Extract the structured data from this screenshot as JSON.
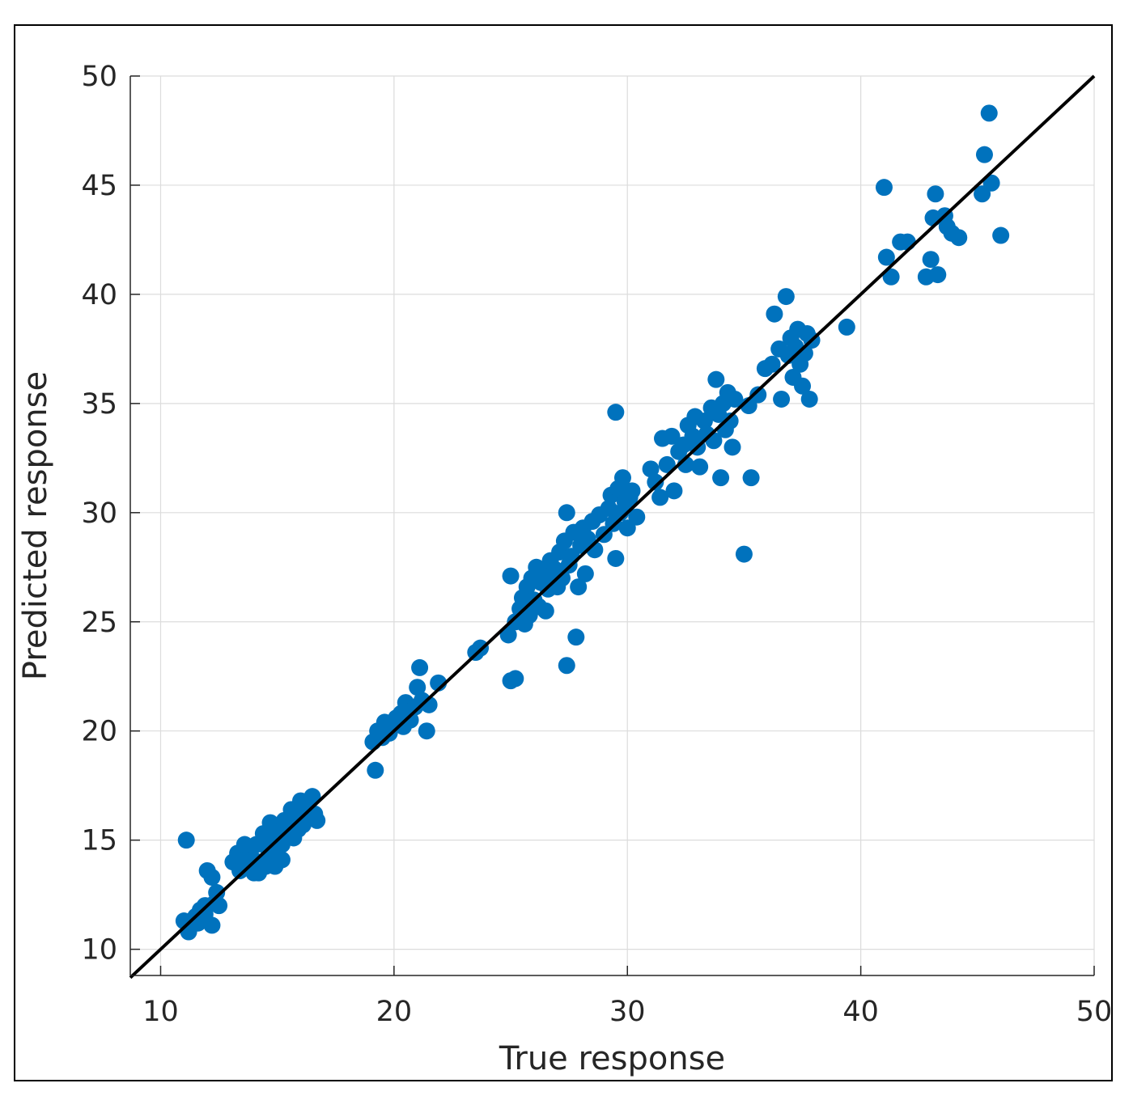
{
  "chart_data": {
    "type": "scatter",
    "title": "",
    "xlabel": "True response",
    "ylabel": "Predicted response",
    "xlim": [
      8.7,
      50
    ],
    "ylim": [
      8.8,
      50
    ],
    "xticks": [
      10,
      20,
      30,
      40,
      50
    ],
    "yticks": [
      10,
      15,
      20,
      25,
      30,
      35,
      40,
      45,
      50
    ],
    "grid": true,
    "colors": {
      "points": "#0072BD",
      "reference_line": "#000000",
      "grid": "#dcdcdc",
      "axes": "#262626"
    },
    "reference_line": {
      "from": [
        8.7,
        8.7
      ],
      "to": [
        50,
        50
      ]
    },
    "points": [
      [
        11.0,
        11.3
      ],
      [
        11.2,
        10.8
      ],
      [
        11.1,
        15.0
      ],
      [
        11.5,
        11.5
      ],
      [
        11.7,
        11.8
      ],
      [
        11.9,
        12.0
      ],
      [
        12.0,
        13.6
      ],
      [
        12.2,
        13.3
      ],
      [
        12.4,
        12.6
      ],
      [
        12.5,
        12.0
      ],
      [
        12.2,
        11.1
      ],
      [
        11.6,
        11.2
      ],
      [
        11.9,
        11.6
      ],
      [
        12.3,
        12.1
      ],
      [
        13.1,
        14.0
      ],
      [
        13.3,
        14.4
      ],
      [
        13.4,
        13.6
      ],
      [
        13.6,
        13.9
      ],
      [
        13.7,
        14.7
      ],
      [
        13.9,
        14.2
      ],
      [
        14.0,
        13.5
      ],
      [
        14.1,
        14.8
      ],
      [
        14.3,
        14.0
      ],
      [
        14.4,
        15.3
      ],
      [
        14.5,
        13.8
      ],
      [
        14.6,
        14.6
      ],
      [
        14.7,
        15.8
      ],
      [
        14.8,
        14.3
      ],
      [
        14.9,
        15.0
      ],
      [
        15.0,
        14.6
      ],
      [
        15.1,
        15.4
      ],
      [
        15.2,
        14.8
      ],
      [
        15.3,
        15.9
      ],
      [
        15.4,
        15.2
      ],
      [
        15.5,
        15.6
      ],
      [
        15.6,
        16.4
      ],
      [
        15.7,
        15.1
      ],
      [
        15.8,
        16.0
      ],
      [
        15.9,
        15.5
      ],
      [
        16.0,
        16.8
      ],
      [
        16.2,
        16.1
      ],
      [
        16.3,
        16.5
      ],
      [
        16.5,
        17.0
      ],
      [
        16.6,
        16.2
      ],
      [
        16.7,
        15.9
      ],
      [
        14.2,
        13.5
      ],
      [
        14.9,
        13.8
      ],
      [
        15.2,
        14.1
      ],
      [
        13.6,
        14.8
      ],
      [
        16.1,
        15.7
      ],
      [
        19.1,
        19.5
      ],
      [
        19.2,
        18.2
      ],
      [
        19.3,
        20.0
      ],
      [
        19.5,
        19.7
      ],
      [
        19.6,
        20.4
      ],
      [
        19.8,
        19.9
      ],
      [
        20.0,
        20.3
      ],
      [
        20.3,
        20.8
      ],
      [
        20.4,
        20.2
      ],
      [
        20.5,
        21.3
      ],
      [
        20.7,
        20.5
      ],
      [
        20.9,
        21.1
      ],
      [
        21.0,
        22.0
      ],
      [
        21.1,
        22.9
      ],
      [
        21.2,
        21.4
      ],
      [
        21.4,
        20.0
      ],
      [
        21.5,
        21.2
      ],
      [
        21.9,
        22.2
      ],
      [
        20.1,
        20.6
      ],
      [
        23.5,
        23.6
      ],
      [
        23.7,
        23.8
      ],
      [
        24.9,
        24.4
      ],
      [
        25.0,
        22.3
      ],
      [
        25.2,
        22.4
      ],
      [
        25.0,
        27.1
      ],
      [
        25.2,
        25.0
      ],
      [
        25.4,
        25.6
      ],
      [
        25.5,
        26.1
      ],
      [
        25.6,
        24.9
      ],
      [
        25.7,
        26.6
      ],
      [
        25.8,
        25.3
      ],
      [
        25.9,
        27.0
      ],
      [
        26.0,
        26.0
      ],
      [
        26.1,
        27.5
      ],
      [
        26.2,
        25.7
      ],
      [
        26.3,
        26.8
      ],
      [
        26.4,
        27.2
      ],
      [
        26.5,
        25.5
      ],
      [
        26.6,
        26.5
      ],
      [
        26.7,
        27.8
      ],
      [
        26.8,
        26.9
      ],
      [
        26.9,
        27.4
      ],
      [
        27.0,
        26.6
      ],
      [
        27.1,
        28.2
      ],
      [
        27.2,
        27.0
      ],
      [
        27.3,
        28.7
      ],
      [
        27.4,
        30.0
      ],
      [
        27.4,
        23.0
      ],
      [
        27.5,
        27.6
      ],
      [
        27.6,
        28.0
      ],
      [
        27.7,
        29.1
      ],
      [
        27.8,
        24.3
      ],
      [
        27.9,
        26.6
      ],
      [
        28.0,
        28.5
      ],
      [
        28.1,
        29.3
      ],
      [
        28.2,
        27.2
      ],
      [
        28.3,
        28.8
      ],
      [
        28.5,
        29.6
      ],
      [
        28.6,
        28.3
      ],
      [
        28.8,
        29.9
      ],
      [
        29.0,
        29.0
      ],
      [
        29.2,
        30.2
      ],
      [
        29.3,
        30.8
      ],
      [
        29.4,
        29.5
      ],
      [
        29.5,
        34.6
      ],
      [
        29.5,
        27.9
      ],
      [
        29.6,
        31.1
      ],
      [
        29.7,
        30.0
      ],
      [
        29.8,
        31.6
      ],
      [
        29.9,
        30.5
      ],
      [
        30.0,
        29.3
      ],
      [
        30.1,
        30.7
      ],
      [
        30.2,
        31.0
      ],
      [
        30.4,
        29.8
      ],
      [
        31.0,
        32.0
      ],
      [
        31.2,
        31.4
      ],
      [
        31.4,
        30.7
      ],
      [
        31.5,
        33.4
      ],
      [
        31.7,
        32.2
      ],
      [
        31.9,
        33.5
      ],
      [
        32.0,
        31.0
      ],
      [
        32.2,
        32.8
      ],
      [
        32.4,
        33.1
      ],
      [
        32.5,
        32.2
      ],
      [
        32.6,
        34.0
      ],
      [
        32.8,
        33.5
      ],
      [
        32.9,
        34.4
      ],
      [
        33.0,
        33.0
      ],
      [
        33.1,
        32.1
      ],
      [
        33.3,
        34.2
      ],
      [
        33.4,
        33.6
      ],
      [
        33.6,
        34.8
      ],
      [
        33.7,
        33.3
      ],
      [
        33.8,
        36.1
      ],
      [
        33.9,
        34.5
      ],
      [
        34.0,
        31.6
      ],
      [
        34.1,
        35.0
      ],
      [
        34.2,
        33.8
      ],
      [
        34.3,
        35.5
      ],
      [
        34.4,
        34.2
      ],
      [
        34.5,
        33.0
      ],
      [
        34.6,
        35.2
      ],
      [
        35.0,
        28.1
      ],
      [
        35.2,
        34.9
      ],
      [
        35.3,
        31.6
      ],
      [
        35.6,
        35.4
      ],
      [
        35.9,
        36.6
      ],
      [
        36.2,
        36.8
      ],
      [
        36.3,
        39.1
      ],
      [
        36.5,
        37.5
      ],
      [
        36.6,
        35.2
      ],
      [
        36.8,
        39.9
      ],
      [
        36.9,
        37.2
      ],
      [
        37.0,
        38.0
      ],
      [
        37.1,
        36.2
      ],
      [
        37.2,
        37.6
      ],
      [
        37.3,
        38.4
      ],
      [
        37.4,
        36.8
      ],
      [
        37.5,
        35.8
      ],
      [
        37.6,
        37.3
      ],
      [
        37.7,
        38.2
      ],
      [
        37.8,
        35.2
      ],
      [
        37.9,
        37.9
      ],
      [
        39.4,
        38.5
      ],
      [
        41.0,
        44.9
      ],
      [
        41.1,
        41.7
      ],
      [
        41.3,
        40.8
      ],
      [
        41.7,
        42.4
      ],
      [
        42.0,
        42.4
      ],
      [
        42.8,
        40.8
      ],
      [
        43.0,
        41.6
      ],
      [
        43.1,
        43.5
      ],
      [
        43.2,
        44.6
      ],
      [
        43.3,
        40.9
      ],
      [
        43.6,
        43.6
      ],
      [
        43.7,
        43.1
      ],
      [
        43.9,
        42.8
      ],
      [
        44.2,
        42.6
      ],
      [
        45.2,
        44.6
      ],
      [
        45.3,
        46.4
      ],
      [
        45.5,
        48.3
      ],
      [
        45.6,
        45.1
      ],
      [
        46.0,
        42.7
      ]
    ]
  }
}
